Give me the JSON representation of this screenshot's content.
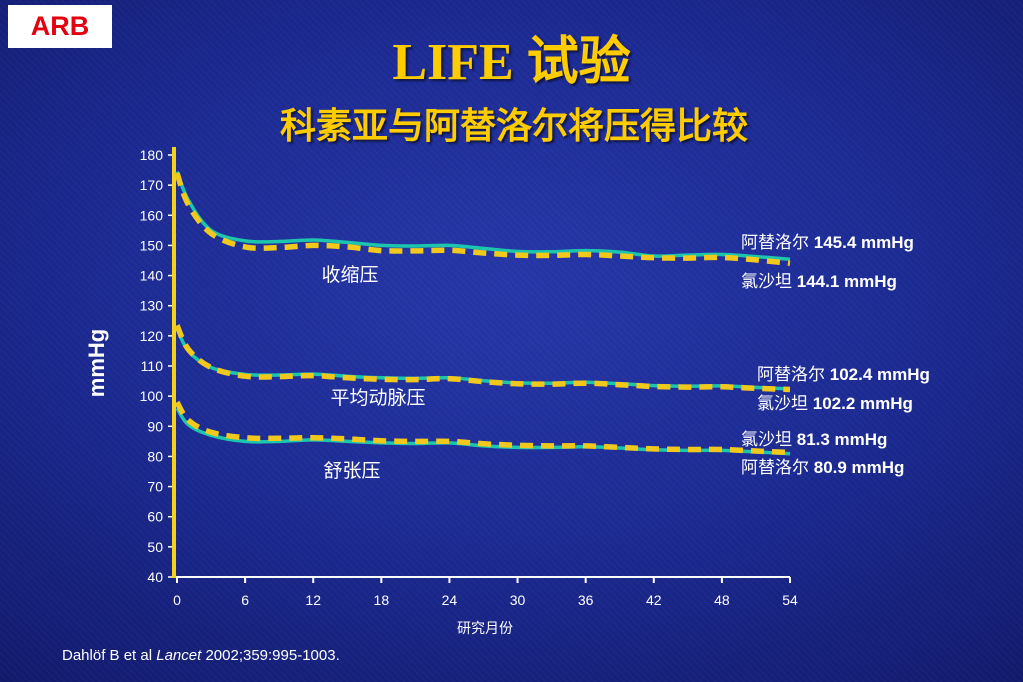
{
  "badge": {
    "label": "ARB"
  },
  "header": {
    "title": "LIFE 试验",
    "subtitle": "科素亚与阿替洛尔将压得比较"
  },
  "colors": {
    "bg_center": "#2637a8",
    "bg_mid": "#1c2a93",
    "bg_edge": "#111a6b",
    "title": "#ffcc00",
    "badge_bg": "#ffffff",
    "badge_text": "#e3000f",
    "y_axis": "#f3d21b",
    "x_axis": "#ffffff",
    "text": "#ffffff"
  },
  "chart_data": {
    "type": "line",
    "xlabel": "研究月份",
    "ylabel": "mmHg",
    "xlim": [
      0,
      54
    ],
    "ylim": [
      40,
      180
    ],
    "x_ticks": [
      0,
      6,
      12,
      18,
      24,
      30,
      36,
      42,
      48,
      54
    ],
    "y_ticks": [
      40,
      50,
      60,
      70,
      80,
      90,
      100,
      110,
      120,
      130,
      140,
      150,
      160,
      170,
      180
    ],
    "grid": false,
    "legend": "right",
    "x": [
      0,
      1,
      3,
      6,
      9,
      12,
      15,
      18,
      21,
      24,
      27,
      30,
      33,
      36,
      39,
      42,
      45,
      48,
      51,
      54
    ],
    "groups": [
      {
        "label": "收缩压",
        "series": [
          {
            "name": "阿替洛尔",
            "end_value": "145.4 mmHg",
            "color": "#1cc6ae",
            "dashed": false,
            "values": [
              174.5,
              165,
              155,
              151.5,
              151.3,
              151.8,
              151,
              150,
              149.8,
              150,
              149,
              148,
              147.9,
              148.3,
              147.8,
              146.5,
              146.8,
              147,
              146.3,
              145.4
            ]
          },
          {
            "name": "氯沙坦",
            "end_value": "144.1 mmHg",
            "color": "#f2c81c",
            "dashed": true,
            "values": [
              174,
              163.5,
              154,
              149.5,
              149.3,
              150,
              149.5,
              148.3,
              148.2,
              148.4,
              147.5,
              146.8,
              146.7,
              147,
              146.5,
              145.9,
              145.8,
              146,
              145.2,
              144.1
            ]
          }
        ]
      },
      {
        "label": "平均动脉压",
        "series": [
          {
            "name": "阿替洛尔",
            "end_value": "102.4 mmHg",
            "color": "#1cc6ae",
            "dashed": false,
            "values": [
              122.5,
              115,
              109.5,
              107.2,
              107,
              107.3,
              106.6,
              106.1,
              105.9,
              106.1,
              105.1,
              104.4,
              104.3,
              104.6,
              104.1,
              103.5,
              103.3,
              103.4,
              102.9,
              102.4
            ]
          },
          {
            "name": "氯沙坦",
            "end_value": "102.2 mmHg",
            "color": "#f2c81c",
            "dashed": true,
            "values": [
              123.5,
              115.5,
              109.5,
              106.6,
              106.5,
              106.8,
              106.1,
              105.6,
              105.5,
              105.8,
              104.8,
              104.1,
              104,
              104.3,
              103.8,
              103.2,
              103,
              103.1,
              102.6,
              102.2
            ]
          }
        ]
      },
      {
        "label": "舒张压",
        "series": [
          {
            "name": "阿替洛尔",
            "end_value": "80.9 mmHg",
            "color": "#1cc6ae",
            "dashed": false,
            "values": [
              96,
              90.5,
              87,
              85,
              85,
              85.5,
              85,
              84.5,
              84.3,
              84.5,
              83.5,
              83,
              83,
              83.2,
              82.8,
              82.2,
              82,
              82,
              81.5,
              80.9
            ]
          },
          {
            "name": "氯沙坦",
            "end_value": "81.3 mmHg",
            "color": "#f2c81c",
            "dashed": true,
            "values": [
              98,
              92,
              88,
              86.2,
              86,
              86.2,
              85.8,
              85.2,
              85,
              85,
              84.2,
              83.7,
              83.5,
              83.5,
              83,
              82.5,
              82.3,
              82.3,
              81.8,
              81.3
            ]
          }
        ]
      }
    ]
  },
  "citation": {
    "authors": "Dahlöf B et al",
    "journal": "Lancet",
    "details": "2002;359:995-1003."
  }
}
